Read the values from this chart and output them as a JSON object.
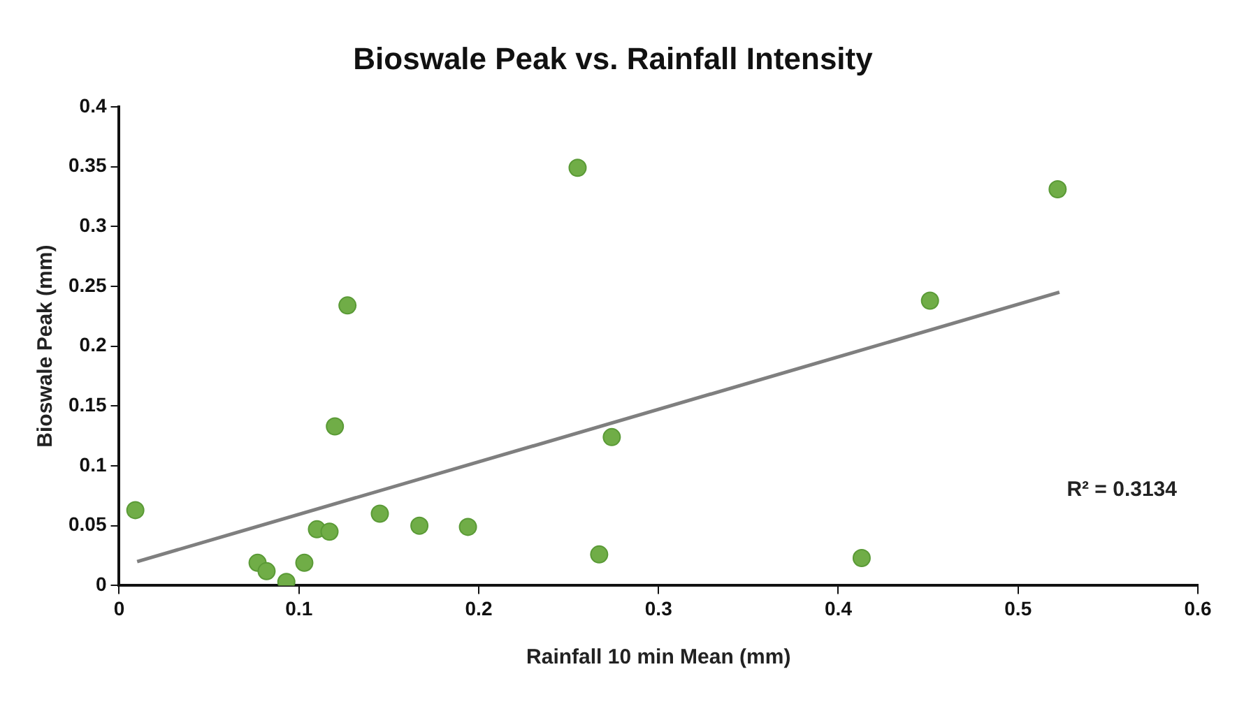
{
  "chart_data": {
    "type": "scatter",
    "title": "Bioswale Peak vs. Rainfall Intensity",
    "xlabel": "Rainfall 10 min Mean (mm)",
    "ylabel": "Bioswale Peak (mm)",
    "xlim": [
      0,
      0.6
    ],
    "xticks": [
      0,
      0.1,
      0.2,
      0.3,
      0.4,
      0.5,
      0.6
    ],
    "ylim": [
      0,
      0.4
    ],
    "yticks": [
      0,
      0.05,
      0.1,
      0.15,
      0.2,
      0.25,
      0.3,
      0.35,
      0.4
    ],
    "grid": false,
    "legend": false,
    "series": [
      {
        "marker": "circle",
        "color": "#70ad47",
        "x": [
          0.009,
          0.077,
          0.082,
          0.093,
          0.103,
          0.11,
          0.117,
          0.12,
          0.127,
          0.145,
          0.167,
          0.194,
          0.255,
          0.267,
          0.274,
          0.413,
          0.451,
          0.522
        ],
        "values": [
          0.063,
          0.019,
          0.012,
          0.003,
          0.019,
          0.047,
          0.045,
          0.133,
          0.234,
          0.06,
          0.05,
          0.049,
          0.349,
          0.026,
          0.124,
          0.023,
          0.238,
          0.331
        ]
      },
      {
        "type": "line",
        "marker": "none",
        "color": "#7f7f7f",
        "x": [
          0.01,
          0.523
        ],
        "values": [
          0.02,
          0.245
        ]
      }
    ],
    "annotations": [
      "R² = 0.3134"
    ]
  }
}
